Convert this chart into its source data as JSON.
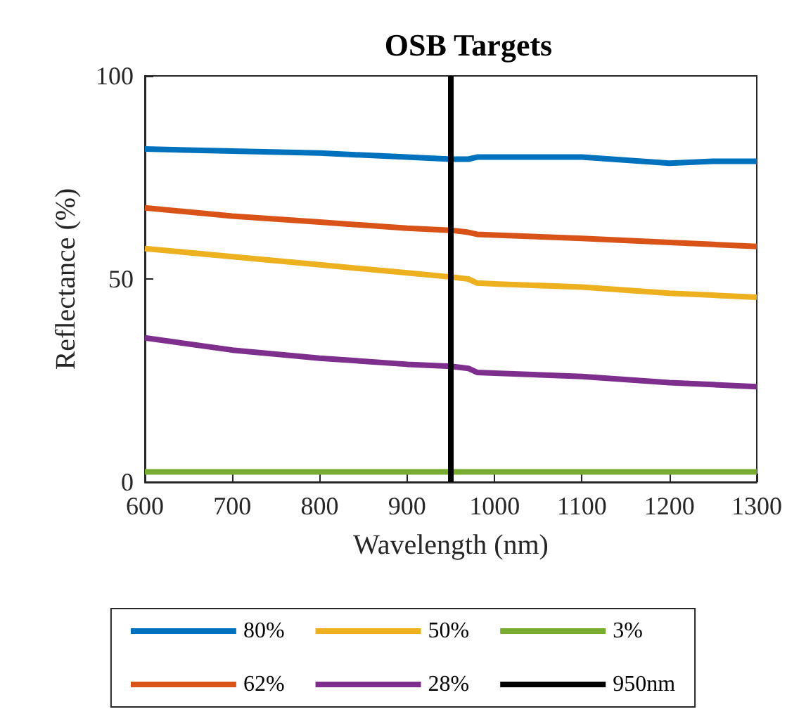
{
  "chart_data": {
    "type": "line",
    "title": "OSB Targets",
    "xlabel": "Wavelength (nm)",
    "ylabel": "Reflectance (%)",
    "x": [
      600,
      700,
      800,
      900,
      950,
      970,
      980,
      1000,
      1100,
      1200,
      1250,
      1300
    ],
    "series": [
      {
        "name": "80%",
        "color": "#0072bd",
        "values": [
          82,
          81.5,
          81,
          80,
          79.5,
          79.5,
          80,
          80,
          80,
          78.5,
          79,
          79
        ]
      },
      {
        "name": "62%",
        "color": "#d95319",
        "values": [
          67.5,
          65.5,
          64,
          62.5,
          62,
          61.5,
          61,
          60.8,
          60,
          59,
          58.5,
          58
        ]
      },
      {
        "name": "50%",
        "color": "#edb120",
        "values": [
          57.5,
          55.5,
          53.5,
          51.5,
          50.5,
          50,
          49,
          48.8,
          48,
          46.5,
          46,
          45.5
        ]
      },
      {
        "name": "28%",
        "color": "#7e2f8e",
        "values": [
          35.5,
          32.5,
          30.5,
          29,
          28.5,
          28,
          27,
          26.8,
          26,
          24.5,
          24,
          23.5
        ]
      },
      {
        "name": "3%",
        "color": "#77ac30",
        "values": [
          2.5,
          2.5,
          2.5,
          2.5,
          2.5,
          2.5,
          2.5,
          2.5,
          2.5,
          2.5,
          2.5,
          2.5
        ]
      },
      {
        "name": "950nm",
        "color": "#000000",
        "x": [
          950,
          950
        ],
        "values": [
          0,
          100
        ]
      }
    ],
    "xlim": [
      600,
      1300
    ],
    "xticks": [
      600,
      700,
      800,
      900,
      1000,
      1100,
      1200,
      1300
    ],
    "ylim": [
      0,
      100
    ],
    "yticks": [
      0,
      50,
      100
    ],
    "grid": false,
    "legend": "bottom",
    "marker": "none",
    "line_style": "solid"
  }
}
